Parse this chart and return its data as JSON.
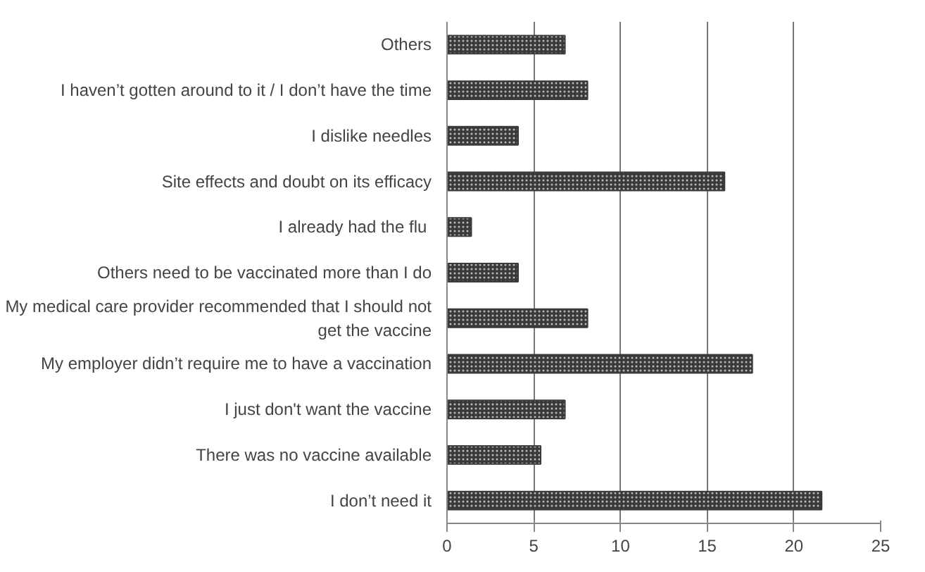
{
  "chart_data": {
    "type": "bar",
    "orientation": "horizontal",
    "categories": [
      "Others",
      "I haven’t gotten around to it / I don’t have the time",
      "I dislike needles",
      "Site effects and doubt on its efficacy",
      "I already had  the flu",
      "Others need to be vaccinated more than I do",
      "My medical care provider recommended that I should not get the vaccine",
      "My employer didn’t require me to have a vaccination",
      "I just don't want the vaccine",
      "There was no vaccine available",
      "I don’t need it"
    ],
    "values": [
      6.8,
      8.1,
      4.1,
      16.0,
      1.4,
      4.1,
      8.1,
      17.6,
      6.8,
      5.4,
      21.6
    ],
    "color": "#3a3a3a",
    "xlim": [
      0,
      25
    ],
    "xticks": [
      0,
      5,
      10,
      15,
      20,
      25
    ],
    "grid": "x"
  }
}
